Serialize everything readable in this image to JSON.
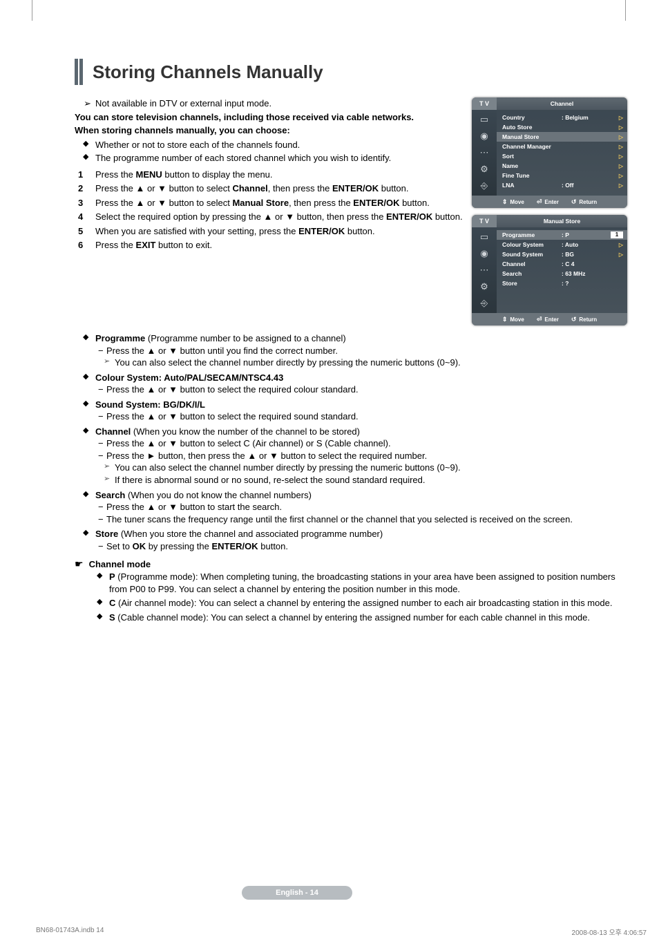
{
  "title": "Storing Channels Manually",
  "intro": {
    "note": "Not available in DTV or external input mode.",
    "line1": "You can store television channels, including those received via cable networks.",
    "line2": "When storing channels manually, you can choose:",
    "bullets": [
      "Whether or not to store each of the channels found.",
      "The programme number of each stored channel which you wish to identify."
    ]
  },
  "steps": [
    {
      "n": "1",
      "text_a": "Press the ",
      "b1": "MENU",
      "text_b": " button to display the menu."
    },
    {
      "n": "2",
      "text_a": "Press the ▲ or ▼ button to select ",
      "b1": "Channel",
      "text_b": ", then press the ",
      "b2": "ENTER/OK",
      "text_c": " button."
    },
    {
      "n": "3",
      "text_a": "Press the ▲ or ▼ button to select ",
      "b1": "Manual Store",
      "text_b": ", then press the ",
      "b2": "ENTER/OK",
      "text_c": " button."
    },
    {
      "n": "4",
      "text_a": "Select the required option by pressing the ▲ or ▼ button, then press the ",
      "b1": "ENTER/OK",
      "text_b": " button."
    },
    {
      "n": "5",
      "text_a": "When you are satisfied with your setting, press the ",
      "b1": "ENTER/OK",
      "text_b": " button."
    },
    {
      "n": "6",
      "text_a": "Press the ",
      "b1": "EXIT",
      "text_b": " button to exit."
    }
  ],
  "options": {
    "programme": {
      "title": "Programme",
      "desc": " (Programme number to be assigned to a channel)",
      "sub1": "Press the ▲ or ▼ button until you find the correct number.",
      "note": "You can also select the channel number directly by pressing the numeric buttons (0~9)."
    },
    "colour": {
      "title": "Colour System",
      "vals": ": Auto/PAL/SECAM/NTSC4.43",
      "sub1": "Press the ▲ or ▼ button to select the required colour standard."
    },
    "sound": {
      "title": "Sound System",
      "vals": ": BG/DK/I/L",
      "sub1": "Press the ▲ or ▼ button to select the required sound standard."
    },
    "channel": {
      "title": "Channel",
      "desc": " (When you know the number of the channel to be stored)",
      "sub1": "Press the ▲ or ▼ button to select C (Air channel) or S (Cable channel).",
      "sub2": "Press the ► button, then press the ▲ or ▼ button to select the required number.",
      "note1": "You can also select the channel number directly by pressing the numeric buttons (0~9).",
      "note2": "If there is abnormal sound or no sound, re-select the sound standard required."
    },
    "search": {
      "title": "Search",
      "desc": " (When you do not know the channel numbers)",
      "sub1": "Press the ▲ or ▼ button to start the search.",
      "sub2": "The tuner scans the frequency range until the first channel or the channel that you selected is received on the screen."
    },
    "store": {
      "title": "Store",
      "desc": " (When you store the channel and associated programme number)",
      "sub1_a": "Set to ",
      "sub1_b": "OK",
      "sub1_c": " by pressing the ",
      "sub1_d": "ENTER/OK",
      "sub1_e": " button."
    }
  },
  "channel_mode": {
    "title": "Channel mode",
    "items": [
      {
        "b": "P",
        "t": " (Programme mode): When completing tuning, the broadcasting stations in your area have been assigned to position numbers from P00 to P99. You can select a channel by entering the position number in this mode."
      },
      {
        "b": "C",
        "t": " (Air channel mode): You can select a channel by entering the assigned number to each air broadcasting station in this mode."
      },
      {
        "b": "S",
        "t": " (Cable channel mode): You can select a channel by entering the assigned number for each cable channel in this mode."
      }
    ]
  },
  "osd1": {
    "tab": "T V",
    "title": "Channel",
    "rows": [
      {
        "label": "Country",
        "val": ": Belgium",
        "arrow": true
      },
      {
        "label": "Auto Store",
        "val": "",
        "arrow": true
      },
      {
        "label": "Manual Store",
        "val": "",
        "arrow": true,
        "hl": true
      },
      {
        "label": "Channel Manager",
        "val": "",
        "arrow": true
      },
      {
        "label": "Sort",
        "val": "",
        "arrow": true
      },
      {
        "label": "Name",
        "val": "",
        "arrow": true
      },
      {
        "label": "Fine Tune",
        "val": "",
        "arrow": true
      },
      {
        "label": "LNA",
        "val": ": Off",
        "arrow": true
      }
    ],
    "footer": {
      "move": "Move",
      "enter": "Enter",
      "ret": "Return"
    }
  },
  "osd2": {
    "tab": "T V",
    "title": "Manual Store",
    "rows": [
      {
        "label": "Programme",
        "val": ": P",
        "input": "1",
        "hl": true
      },
      {
        "label": "Colour System",
        "val": ": Auto",
        "arrow": true
      },
      {
        "label": "Sound System",
        "val": ": BG",
        "arrow": true
      },
      {
        "label": "Channel",
        "val": ": C    4"
      },
      {
        "label": "Search",
        "val": ": 63   MHz"
      },
      {
        "label": "Store",
        "val": ": ?"
      }
    ],
    "footer": {
      "move": "Move",
      "enter": "Enter",
      "ret": "Return"
    }
  },
  "footer_page": "English - 14",
  "meta": {
    "left": "BN68-01743A.indb   14",
    "right": "2008-08-13   오후 4:06:57"
  }
}
